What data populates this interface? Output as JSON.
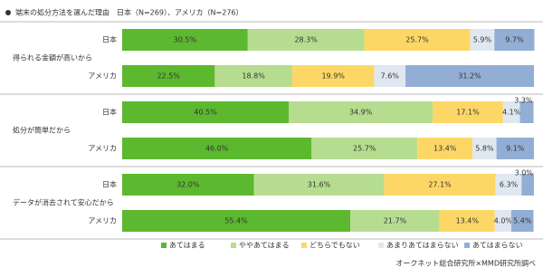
{
  "chart_data": {
    "type": "stacked-barh",
    "title": "端末の処分方法を選んだ理由　日本（N=269）、アメリカ（N=276）",
    "source": "オークネット総合研究所×MMD研究所調べ",
    "groups": [
      "得られる金額が高いから",
      "処分が簡単だから",
      "データが消去されて安心だから"
    ],
    "categories": [
      "日本",
      "アメリカ",
      "日本",
      "アメリカ",
      "日本",
      "アメリカ"
    ],
    "xlim": [
      0,
      100
    ],
    "series": [
      {
        "name": "あてはまる",
        "color": "#5cb82f",
        "values": [
          30.5,
          22.5,
          40.5,
          46.0,
          32.0,
          55.4
        ],
        "value_labels": [
          "30.5%",
          "22.5%",
          "40.5%",
          "46.0%",
          "32.0%",
          "55.4%"
        ]
      },
      {
        "name": "ややあてはまる",
        "color": "#b6dd8f",
        "values": [
          28.3,
          18.8,
          34.9,
          25.7,
          31.6,
          21.7
        ],
        "value_labels": [
          "28.3%",
          "18.8%",
          "34.9%",
          "25.7%",
          "31.6%",
          "21.7%"
        ]
      },
      {
        "name": "どちらでもない",
        "color": "#fdd766",
        "values": [
          25.7,
          19.9,
          17.1,
          13.4,
          27.1,
          13.4
        ],
        "value_labels": [
          "25.7%",
          "19.9%",
          "17.1%",
          "13.4%",
          "27.1%",
          "13.4%"
        ]
      },
      {
        "name": "あまりあてはまらない",
        "color": "#dfe7f1",
        "values": [
          5.9,
          7.6,
          4.1,
          5.8,
          6.3,
          4.0
        ],
        "value_labels": [
          "5.9%",
          "7.6%",
          "4.1%",
          "5.8%",
          "6.3%",
          "4.0%"
        ]
      },
      {
        "name": "あてはまらない",
        "color": "#93aed5",
        "values": [
          9.7,
          31.2,
          3.3,
          9.1,
          3.0,
          5.4
        ],
        "value_labels": [
          "9.7%",
          "31.2%",
          "3.3%",
          "9.1%",
          "3.0%",
          "5.4%"
        ]
      }
    ]
  }
}
